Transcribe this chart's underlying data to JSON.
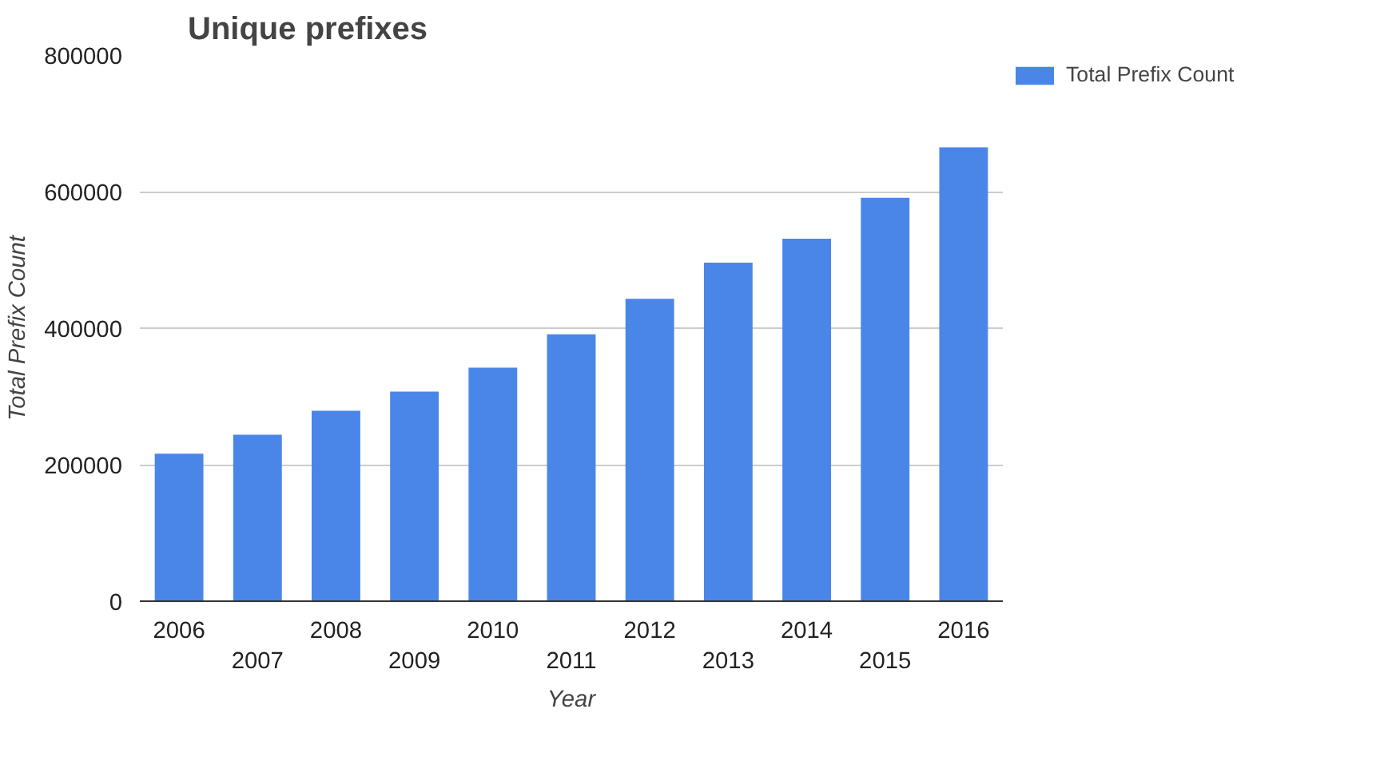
{
  "chart_data": {
    "type": "bar",
    "title": "Unique prefixes",
    "xlabel": "Year",
    "ylabel": "Total Prefix Count",
    "categories": [
      "2006",
      "2007",
      "2008",
      "2009",
      "2010",
      "2011",
      "2012",
      "2013",
      "2014",
      "2015",
      "2016"
    ],
    "series": [
      {
        "name": "Total Prefix Count",
        "color": "#4a86e8",
        "values": [
          216000,
          244000,
          279000,
          307000,
          342000,
          391000,
          443000,
          496000,
          531000,
          591000,
          665000
        ]
      }
    ],
    "ylim": [
      0,
      800000
    ],
    "yticks": [
      0,
      200000,
      400000,
      600000,
      800000
    ],
    "grid": "y",
    "legend": "top right"
  }
}
